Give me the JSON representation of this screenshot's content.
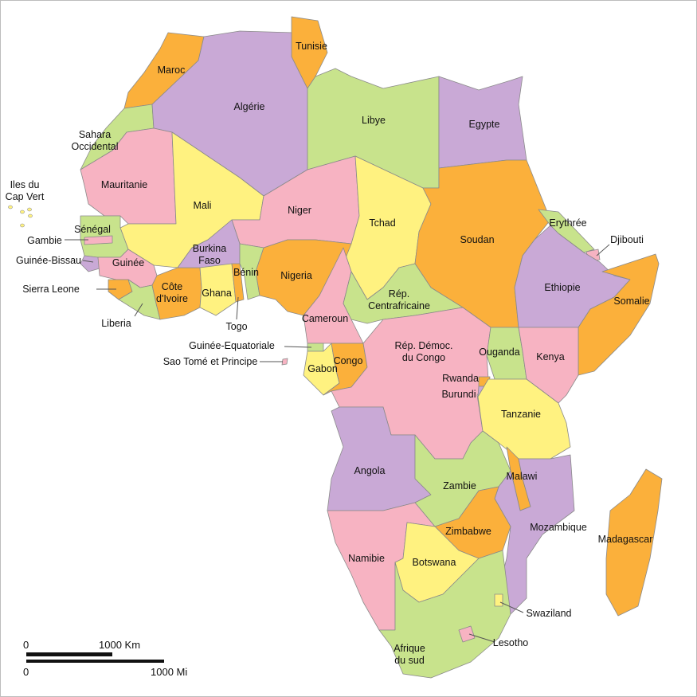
{
  "palette": {
    "pink": "#f7b3c2",
    "green": "#c8e38c",
    "yellow": "#fff280",
    "orange": "#fbb03b",
    "purple": "#c9a9d6",
    "border": "#8a8a8a"
  },
  "countries": [
    {
      "id": "maroc",
      "lines": [
        "Maroc"
      ],
      "color": "orange"
    },
    {
      "id": "sahara-occidental",
      "lines": [
        "Sahara",
        "Occidental"
      ],
      "color": "green"
    },
    {
      "id": "algerie",
      "lines": [
        "Algérie"
      ],
      "color": "purple"
    },
    {
      "id": "tunisie",
      "lines": [
        "Tunisie"
      ],
      "color": "orange"
    },
    {
      "id": "libye",
      "lines": [
        "Libye"
      ],
      "color": "green"
    },
    {
      "id": "egypte",
      "lines": [
        "Egypte"
      ],
      "color": "purple"
    },
    {
      "id": "mauritanie",
      "lines": [
        "Mauritanie"
      ],
      "color": "pink"
    },
    {
      "id": "mali",
      "lines": [
        "Mali"
      ],
      "color": "yellow"
    },
    {
      "id": "niger",
      "lines": [
        "Niger"
      ],
      "color": "pink"
    },
    {
      "id": "tchad",
      "lines": [
        "Tchad"
      ],
      "color": "yellow"
    },
    {
      "id": "soudan",
      "lines": [
        "Soudan"
      ],
      "color": "orange"
    },
    {
      "id": "erythree",
      "lines": [
        "Erythrée"
      ],
      "color": "green"
    },
    {
      "id": "djibouti",
      "lines": [
        "Djibouti"
      ],
      "color": "pink"
    },
    {
      "id": "ethiopie",
      "lines": [
        "Ethiopie"
      ],
      "color": "purple"
    },
    {
      "id": "somalie",
      "lines": [
        "Somalie"
      ],
      "color": "orange"
    },
    {
      "id": "senegal",
      "lines": [
        "Sénégal"
      ],
      "color": "green"
    },
    {
      "id": "gambie",
      "lines": [
        "Gambie"
      ],
      "color": "pink"
    },
    {
      "id": "guinee-bissau",
      "lines": [
        "Guinée-Bissau"
      ],
      "color": "purple"
    },
    {
      "id": "guinee",
      "lines": [
        "Guinée"
      ],
      "color": "pink"
    },
    {
      "id": "sierra-leone",
      "lines": [
        "Sierra Leone"
      ],
      "color": "orange"
    },
    {
      "id": "liberia",
      "lines": [
        "Liberia"
      ],
      "color": "green"
    },
    {
      "id": "cote-divoire",
      "lines": [
        "Côte",
        "d'Ivoire"
      ],
      "color": "orange"
    },
    {
      "id": "burkina-faso",
      "lines": [
        "Burkina",
        "Faso"
      ],
      "color": "purple"
    },
    {
      "id": "ghana",
      "lines": [
        "Ghana"
      ],
      "color": "yellow"
    },
    {
      "id": "togo",
      "lines": [
        "Togo"
      ],
      "color": "orange"
    },
    {
      "id": "benin",
      "lines": [
        "Bénin"
      ],
      "color": "green"
    },
    {
      "id": "nigeria",
      "lines": [
        "Nigeria"
      ],
      "color": "orange"
    },
    {
      "id": "cameroun",
      "lines": [
        "Cameroun"
      ],
      "color": "pink"
    },
    {
      "id": "rep-centrafricaine",
      "lines": [
        "Rép.",
        "Centrafricaine"
      ],
      "color": "green"
    },
    {
      "id": "guinee-equatoriale",
      "lines": [
        "Guinée-Equatoriale"
      ],
      "color": "green"
    },
    {
      "id": "sao-tome",
      "lines": [
        "Sao Tomé et Principe"
      ],
      "color": "pink"
    },
    {
      "id": "gabon",
      "lines": [
        "Gabon"
      ],
      "color": "yellow"
    },
    {
      "id": "congo",
      "lines": [
        "Congo"
      ],
      "color": "orange"
    },
    {
      "id": "rdc",
      "lines": [
        "Rép. Démoc.",
        "du Congo"
      ],
      "color": "pink"
    },
    {
      "id": "ouganda",
      "lines": [
        "Ouganda"
      ],
      "color": "green"
    },
    {
      "id": "kenya",
      "lines": [
        "Kenya"
      ],
      "color": "pink"
    },
    {
      "id": "rwanda",
      "lines": [
        "Rwanda"
      ],
      "color": "orange"
    },
    {
      "id": "burundi",
      "lines": [
        "Burundi"
      ],
      "color": "purple"
    },
    {
      "id": "tanzanie",
      "lines": [
        "Tanzanie"
      ],
      "color": "yellow"
    },
    {
      "id": "angola",
      "lines": [
        "Angola"
      ],
      "color": "purple"
    },
    {
      "id": "zambie",
      "lines": [
        "Zambie"
      ],
      "color": "green"
    },
    {
      "id": "malawi",
      "lines": [
        "Malawi"
      ],
      "color": "orange"
    },
    {
      "id": "mozambique",
      "lines": [
        "Mozambique"
      ],
      "color": "purple"
    },
    {
      "id": "zimbabwe",
      "lines": [
        "Zimbabwe"
      ],
      "color": "orange"
    },
    {
      "id": "namibie",
      "lines": [
        "Namibie"
      ],
      "color": "pink"
    },
    {
      "id": "botswana",
      "lines": [
        "Botswana"
      ],
      "color": "yellow"
    },
    {
      "id": "afrique-du-sud",
      "lines": [
        "Afrique",
        "du sud"
      ],
      "color": "green"
    },
    {
      "id": "lesotho",
      "lines": [
        "Lesotho"
      ],
      "color": "pink"
    },
    {
      "id": "swaziland",
      "lines": [
        "Swaziland"
      ],
      "color": "yellow"
    },
    {
      "id": "madagascar",
      "lines": [
        "Madagascar"
      ],
      "color": "orange"
    },
    {
      "id": "cap-vert",
      "lines": [
        "Iles du",
        "Cap Vert"
      ],
      "color": "yellow"
    }
  ],
  "scale_bar": {
    "km_start": "0",
    "km_end": "1000 Km",
    "mi_start": "0",
    "mi_end": "1000 Mi"
  }
}
